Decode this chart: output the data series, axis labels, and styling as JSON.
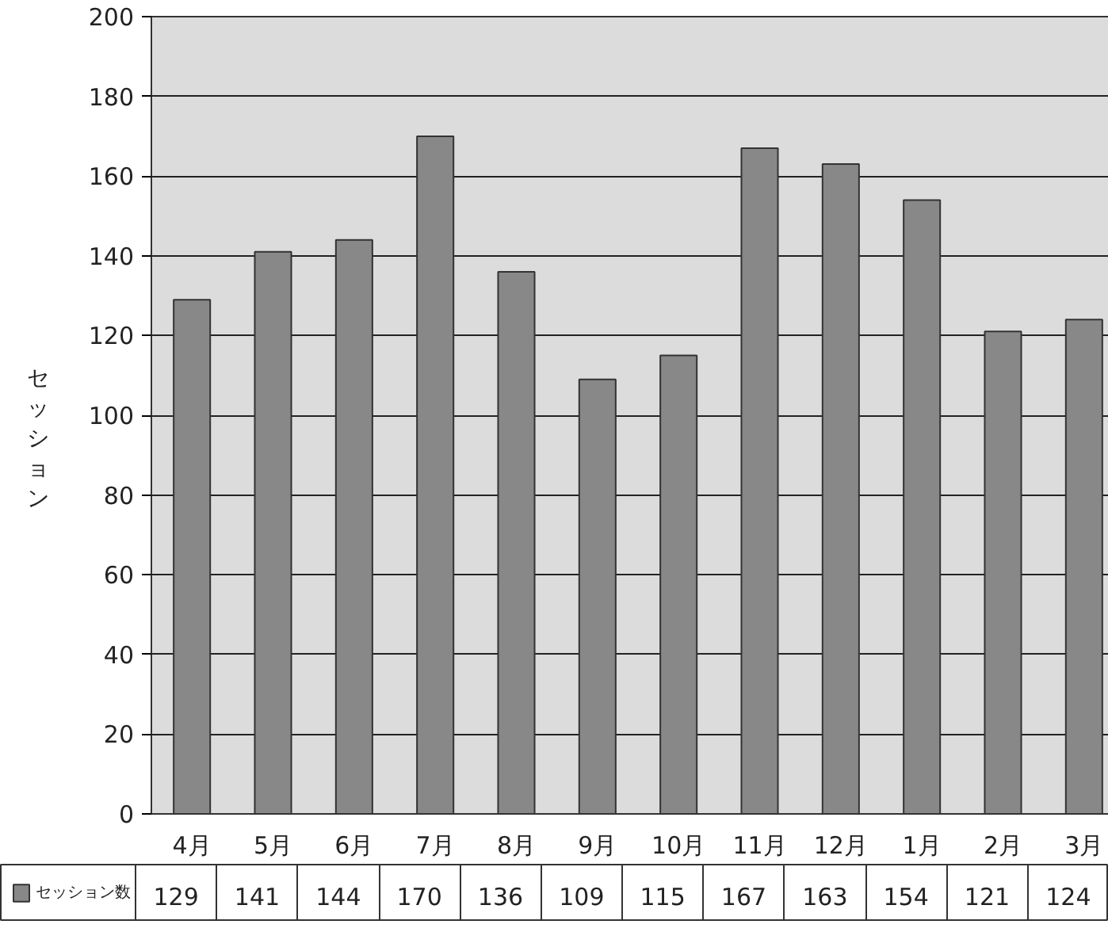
{
  "chart_data": {
    "type": "bar",
    "ylabel": "セッション",
    "categories": [
      "4月",
      "5月",
      "6月",
      "7月",
      "8月",
      "9月",
      "10月",
      "11月",
      "12月",
      "1月",
      "2月",
      "3月"
    ],
    "series": [
      {
        "name": "セッション数",
        "color": "#888888",
        "values": [
          129,
          141,
          144,
          170,
          136,
          109,
          115,
          167,
          163,
          154,
          121,
          124
        ]
      }
    ],
    "ylim": [
      0,
      200
    ],
    "yticks": [
      0,
      20,
      40,
      60,
      80,
      100,
      120,
      140,
      160,
      180,
      200
    ],
    "grid": "y",
    "data_labels": true
  }
}
